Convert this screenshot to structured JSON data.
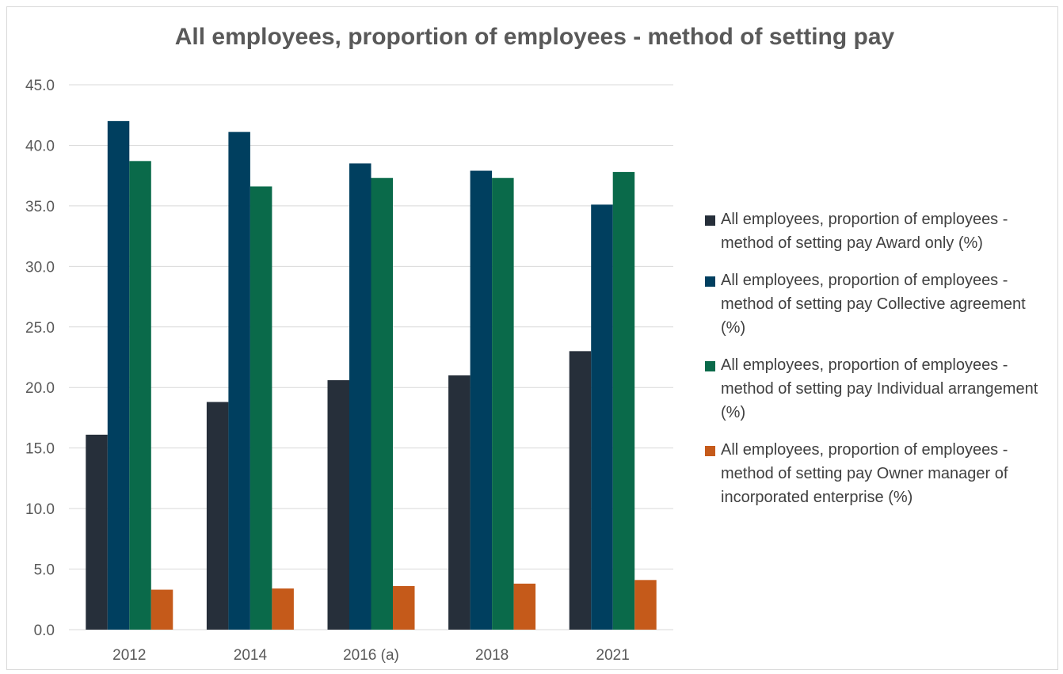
{
  "chart_data": {
    "type": "bar",
    "title": "All employees, proportion of employees - method of setting pay",
    "xlabel": "",
    "ylabel": "",
    "categories": [
      "2012",
      "2014",
      "2016 (a)",
      "2018",
      "2021"
    ],
    "ylim": [
      0,
      45
    ],
    "yticks": [
      "0.0",
      "5.0",
      "10.0",
      "15.0",
      "20.0",
      "25.0",
      "30.0",
      "35.0",
      "40.0",
      "45.0"
    ],
    "grid": true,
    "legend_position": "right",
    "series": [
      {
        "name": "All employees, proportion of employees - method of setting pay Award only (%)",
        "color": "#262f3a",
        "values": [
          16.1,
          18.8,
          20.6,
          21.0,
          23.0
        ]
      },
      {
        "name": "All employees, proportion of employees - method of setting pay Collective agreement (%)",
        "color": "#003f5f",
        "values": [
          42.0,
          41.1,
          38.5,
          37.9,
          35.1
        ]
      },
      {
        "name": "All employees, proportion of employees - method of setting pay Individual arrangement (%)",
        "color": "#0a6a4a",
        "values": [
          38.7,
          36.6,
          37.3,
          37.3,
          37.8
        ]
      },
      {
        "name": "All employees, proportion of employees - method of setting pay Owner manager of incorporated enterprise (%)",
        "color": "#c55a1a",
        "values": [
          3.3,
          3.4,
          3.6,
          3.8,
          4.1
        ]
      }
    ]
  }
}
